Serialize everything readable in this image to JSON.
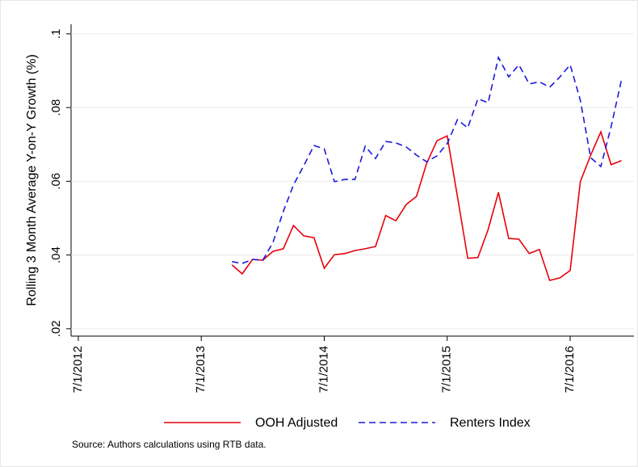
{
  "chart_data": {
    "type": "line",
    "y_label": "Rolling 3 Month Average Y-on-Y Growth (%)",
    "note": "Source: Authors calculations using RTB data.",
    "x": [
      2013.75,
      2013.833,
      2013.917,
      2014,
      2014.083,
      2014.167,
      2014.25,
      2014.333,
      2014.417,
      2014.5,
      2014.583,
      2014.667,
      2014.75,
      2014.833,
      2014.917,
      2015,
      2015.083,
      2015.167,
      2015.25,
      2015.333,
      2015.417,
      2015.5,
      2015.583,
      2015.667,
      2015.75,
      2015.833,
      2015.917,
      2016,
      2016.083,
      2016.167,
      2016.25,
      2016.333,
      2016.417,
      2016.5,
      2016.583,
      2016.667,
      2016.75,
      2016.833,
      2016.917
    ],
    "series": [
      {
        "name": "OOH Adjusted",
        "color": "#e8000b",
        "dash": "solid",
        "values": [
          0.0373,
          0.0349,
          0.0388,
          0.0386,
          0.041,
          0.0417,
          0.048,
          0.0452,
          0.0447,
          0.0364,
          0.0401,
          0.0404,
          0.0412,
          0.0417,
          0.0423,
          0.0507,
          0.0493,
          0.0537,
          0.0559,
          0.0649,
          0.071,
          0.0723,
          0.0559,
          0.0391,
          0.0393,
          0.0469,
          0.057,
          0.0445,
          0.0443,
          0.0404,
          0.0415,
          0.0331,
          0.0338,
          0.0358,
          0.0599,
          0.0671,
          0.0734,
          0.0645,
          0.0656
        ]
      },
      {
        "name": "Renters Index",
        "color": "#1a1adb",
        "dash": "dashed",
        "values": [
          0.0382,
          0.0377,
          0.0388,
          0.0386,
          0.0434,
          0.0518,
          0.059,
          0.0642,
          0.0697,
          0.0688,
          0.0599,
          0.0605,
          0.0605,
          0.0695,
          0.0662,
          0.0708,
          0.0704,
          0.0693,
          0.0671,
          0.0653,
          0.0669,
          0.0702,
          0.0767,
          0.0745,
          0.0824,
          0.0813,
          0.0936,
          0.0883,
          0.0916,
          0.0864,
          0.087,
          0.0855,
          0.0883,
          0.0916,
          0.082,
          0.0664,
          0.064,
          0.0748,
          0.0875
        ]
      }
    ],
    "xlim": [
      2012.441,
      2017.019
    ],
    "xticks": [
      {
        "value": 2012.5,
        "label": "7/1/2012"
      },
      {
        "value": 2013.5,
        "label": "7/1/2013"
      },
      {
        "value": 2014.5,
        "label": "7/1/2014"
      },
      {
        "value": 2015.5,
        "label": "7/1/2015"
      },
      {
        "value": 2016.5,
        "label": "7/1/2016"
      }
    ],
    "ylim": [
      0.018,
      0.1026
    ],
    "yticks": [
      {
        "value": 0.02,
        "label": ".02"
      },
      {
        "value": 0.04,
        "label": ".04"
      },
      {
        "value": 0.06,
        "label": ".06"
      },
      {
        "value": 0.08,
        "label": ".08"
      },
      {
        "value": 0.1,
        "label": ".1"
      }
    ],
    "grid": true
  }
}
